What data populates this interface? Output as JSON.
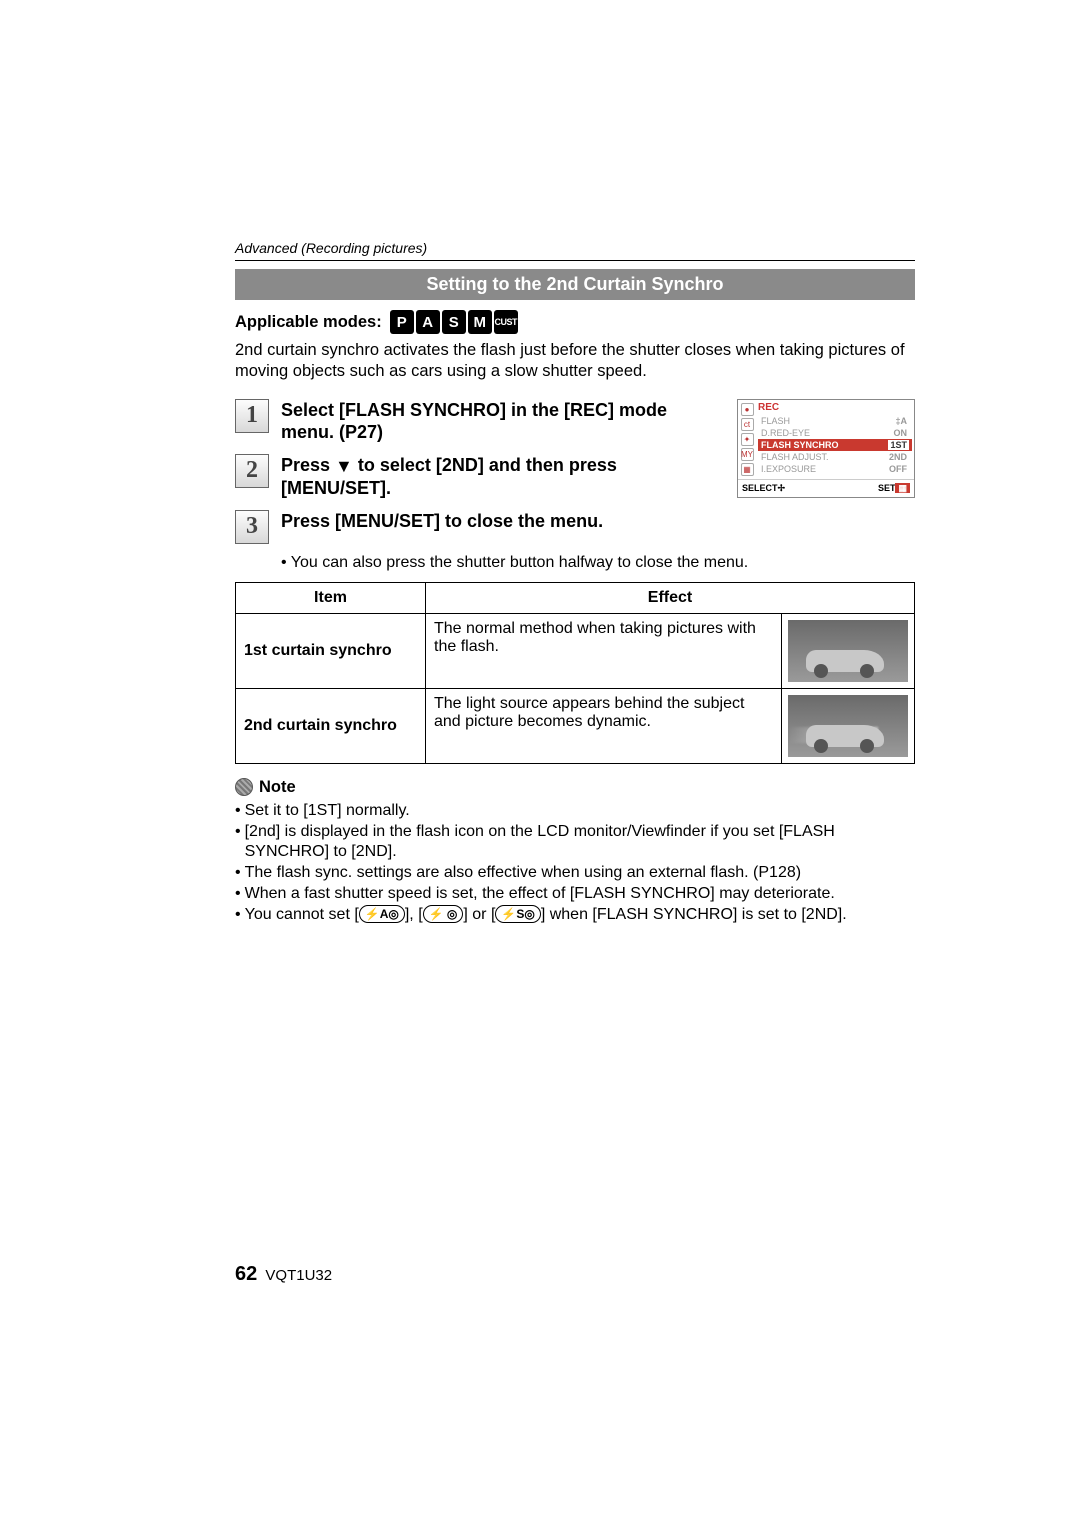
{
  "header": {
    "breadcrumb": "Advanced (Recording pictures)"
  },
  "banner": "Setting to the 2nd Curtain Synchro",
  "applicable": {
    "label": "Applicable modes:",
    "modes": [
      "P",
      "A",
      "S",
      "M",
      "CUST"
    ]
  },
  "intro": "2nd curtain synchro activates the flash just before the shutter closes when taking pictures of moving objects such as cars using a slow shutter speed.",
  "steps": {
    "s1": "Select [FLASH SYNCHRO] in the [REC] mode menu. (P27)",
    "s2a": "Press ",
    "s2b": " to select [2ND] and then press [MENU/SET].",
    "s3": "Press [MENU/SET] to close the menu.",
    "sub3": "You can also press the shutter button halfway to close the menu."
  },
  "menuimg": {
    "title": "REC",
    "rows": [
      {
        "l": "FLASH",
        "r": "‡A"
      },
      {
        "l": "D.RED-EYE",
        "r": "ON"
      },
      {
        "l": "FLASH SYNCHRO",
        "r": "1ST",
        "sel": true
      },
      {
        "l": "FLASH ADJUST.",
        "r": "2ND"
      },
      {
        "l": "I.EXPOSURE",
        "r": "OFF"
      }
    ],
    "select": "SELECT",
    "set": "SET"
  },
  "table": {
    "h1": "Item",
    "h2": "Effect",
    "r1": {
      "item": "1st curtain synchro",
      "effect": "The normal method when taking pictures with the flash."
    },
    "r2": {
      "item": "2nd curtain synchro",
      "effect": "The light source appears behind the subject and picture becomes dynamic."
    }
  },
  "note_label": "Note",
  "notes": {
    "n1": "Set it to [1ST] normally.",
    "n2": "[2nd] is displayed in the flash icon on the LCD monitor/Viewfinder if you set [FLASH SYNCHRO] to [2ND].",
    "n3": "The flash sync. settings are also effective when using an external flash. (P128)",
    "n4": "When a fast shutter speed is set, the effect of [FLASH SYNCHRO] may deteriorate.",
    "n5a": "You cannot set [",
    "n5b": "], [",
    "n5c": "] or [",
    "n5d": "] when [FLASH SYNCHRO] is set to [2ND].",
    "fi1": "⚡A◎",
    "fi2": "⚡ ◎",
    "fi3": "⚡S◎"
  },
  "footer": {
    "page": "62",
    "code": "VQT1U32"
  }
}
